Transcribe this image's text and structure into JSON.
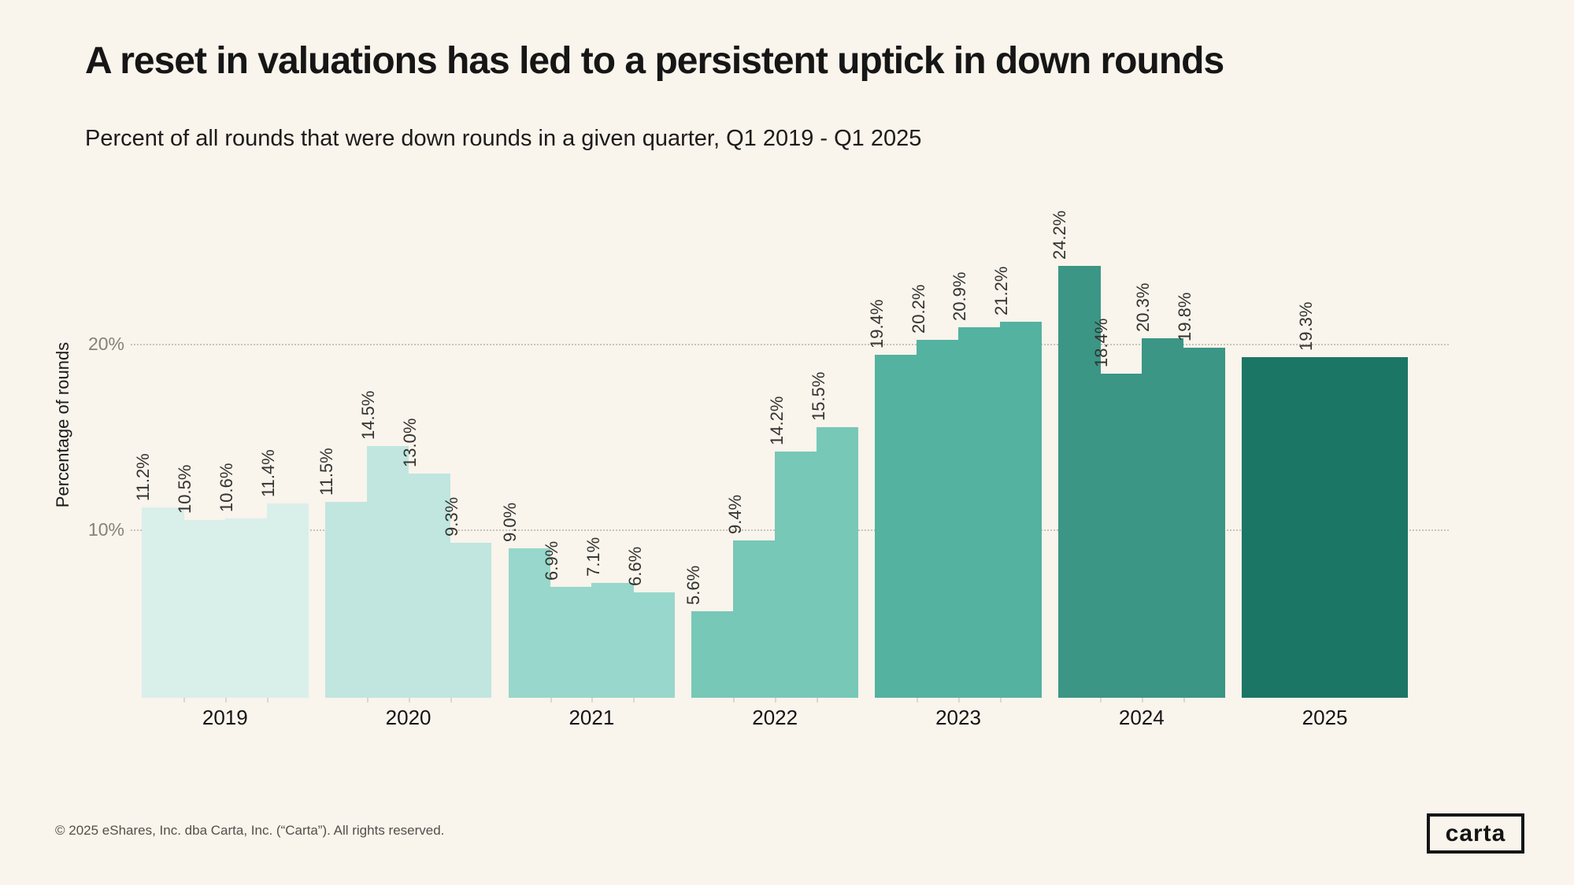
{
  "page": {
    "background_color": "#f9f4ec"
  },
  "header": {
    "title": "A reset in valuations has led to a persistent uptick in down rounds",
    "subtitle": "Percent of all rounds that were down rounds in a given quarter, Q1 2019 - Q1 2025"
  },
  "chart_data": {
    "type": "bar",
    "title": "A reset in valuations has led to a persistent uptick in down rounds",
    "subtitle": "Percent of all rounds that were down rounds in a given quarter, Q1 2019 - Q1 2025",
    "ylabel": "Percentage of rounds",
    "xlabel": "",
    "ylim": [
      0,
      26
    ],
    "yticks": [
      {
        "value": 10,
        "label": "10%"
      },
      {
        "value": 20,
        "label": "20%"
      }
    ],
    "grid": "horizontal dotted lines at 10% and 20%, drawn behind bars",
    "legend_position": "none",
    "categories": [
      "2019",
      "2020",
      "2021",
      "2022",
      "2023",
      "2024",
      "2025"
    ],
    "series_note": "quarterly down-round percentages grouped by year; quarters within a year are flush; 2025 contains Q1 only",
    "groups": [
      {
        "year": "2019",
        "color": "#d9efea",
        "values": [
          11.2,
          10.5,
          10.6,
          11.4
        ]
      },
      {
        "year": "2020",
        "color": "#c0e6df",
        "values": [
          11.5,
          14.5,
          13.0,
          9.3
        ]
      },
      {
        "year": "2021",
        "color": "#98d7cb",
        "values": [
          9.0,
          6.9,
          7.1,
          6.6
        ]
      },
      {
        "year": "2022",
        "color": "#77c8b7",
        "values": [
          5.6,
          9.4,
          14.2,
          15.5
        ]
      },
      {
        "year": "2023",
        "color": "#54b2a0",
        "values": [
          19.4,
          20.2,
          20.9,
          21.2
        ]
      },
      {
        "year": "2024",
        "color": "#3b9685",
        "values": [
          24.2,
          18.4,
          20.3,
          19.8
        ]
      },
      {
        "year": "2025",
        "color": "#1c7665",
        "values": [
          19.3
        ]
      }
    ],
    "value_label_format": "one decimal place with % sign, rotated 90° counterclockwise above each bar"
  },
  "footer": {
    "copyright": "© 2025 eShares, Inc. dba Carta, Inc. (“Carta”). All rights reserved.",
    "logo_text": "carta"
  }
}
